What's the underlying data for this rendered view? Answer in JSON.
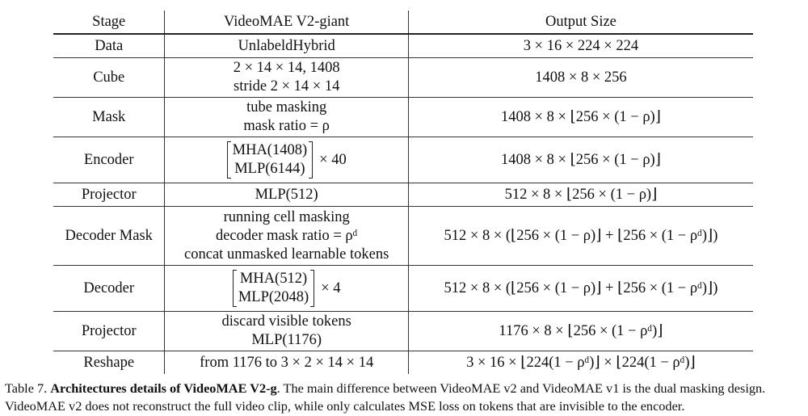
{
  "table": {
    "headers": [
      "Stage",
      "VideoMAE V2-giant",
      "Output Size"
    ],
    "rows": [
      {
        "stage": "Data",
        "config": [
          "UnlabeldHybrid"
        ],
        "output": "3 × 16 × 224 × 224"
      },
      {
        "stage": "Cube",
        "config": [
          "2 × 14 × 14, 1408",
          "stride 2 × 14 × 14"
        ],
        "output": "1408 × 8 × 256"
      },
      {
        "stage": "Mask",
        "config": [
          "tube masking",
          "mask ratio = ρ"
        ],
        "output": "1408 × 8 × ⌊256 × (1 − ρ)⌋"
      },
      {
        "stage": "Encoder",
        "config_matrix": [
          "MHA(1408)",
          "MLP(6144)"
        ],
        "multiplier": "× 40",
        "output": "1408 × 8 × ⌊256 × (1 − ρ)⌋"
      },
      {
        "stage": "Projector",
        "config": [
          "MLP(512)"
        ],
        "output": "512 × 8 × ⌊256 × (1 − ρ)⌋"
      },
      {
        "stage": "Decoder Mask",
        "config": [
          "running cell masking",
          "decoder mask ratio = ρᵈ",
          "concat unmasked learnable tokens"
        ],
        "output": "512 × 8 × (⌊256 × (1 − ρ)⌋ + ⌊256 × (1 − ρᵈ)⌋)"
      },
      {
        "stage": "Decoder",
        "config_matrix": [
          "MHA(512)",
          "MLP(2048)"
        ],
        "multiplier": "× 4",
        "output": "512 × 8 × (⌊256 × (1 − ρ)⌋ + ⌊256 × (1 − ρᵈ)⌋)"
      },
      {
        "stage": "Projector",
        "config": [
          "discard visible tokens",
          "MLP(1176)"
        ],
        "output": "1176 × 8 × ⌊256 × (1 − ρᵈ)⌋"
      },
      {
        "stage": "Reshape",
        "config": [
          "from 1176 to 3 × 2 × 14 × 14"
        ],
        "output": "3 × 16 × ⌊224(1 − ρᵈ)⌋ × ⌊224(1 − ρᵈ)⌋"
      }
    ]
  },
  "caption": {
    "label": "Table 7.",
    "title": "Architectures details of VideoMAE V2-g",
    "text": ". The main difference between VideoMAE v2 and VideoMAE v1 is the dual masking design. VideoMAE v2 does not reconstruct the full video clip, while only calculates MSE loss on tokens that are invisible to the encoder."
  }
}
